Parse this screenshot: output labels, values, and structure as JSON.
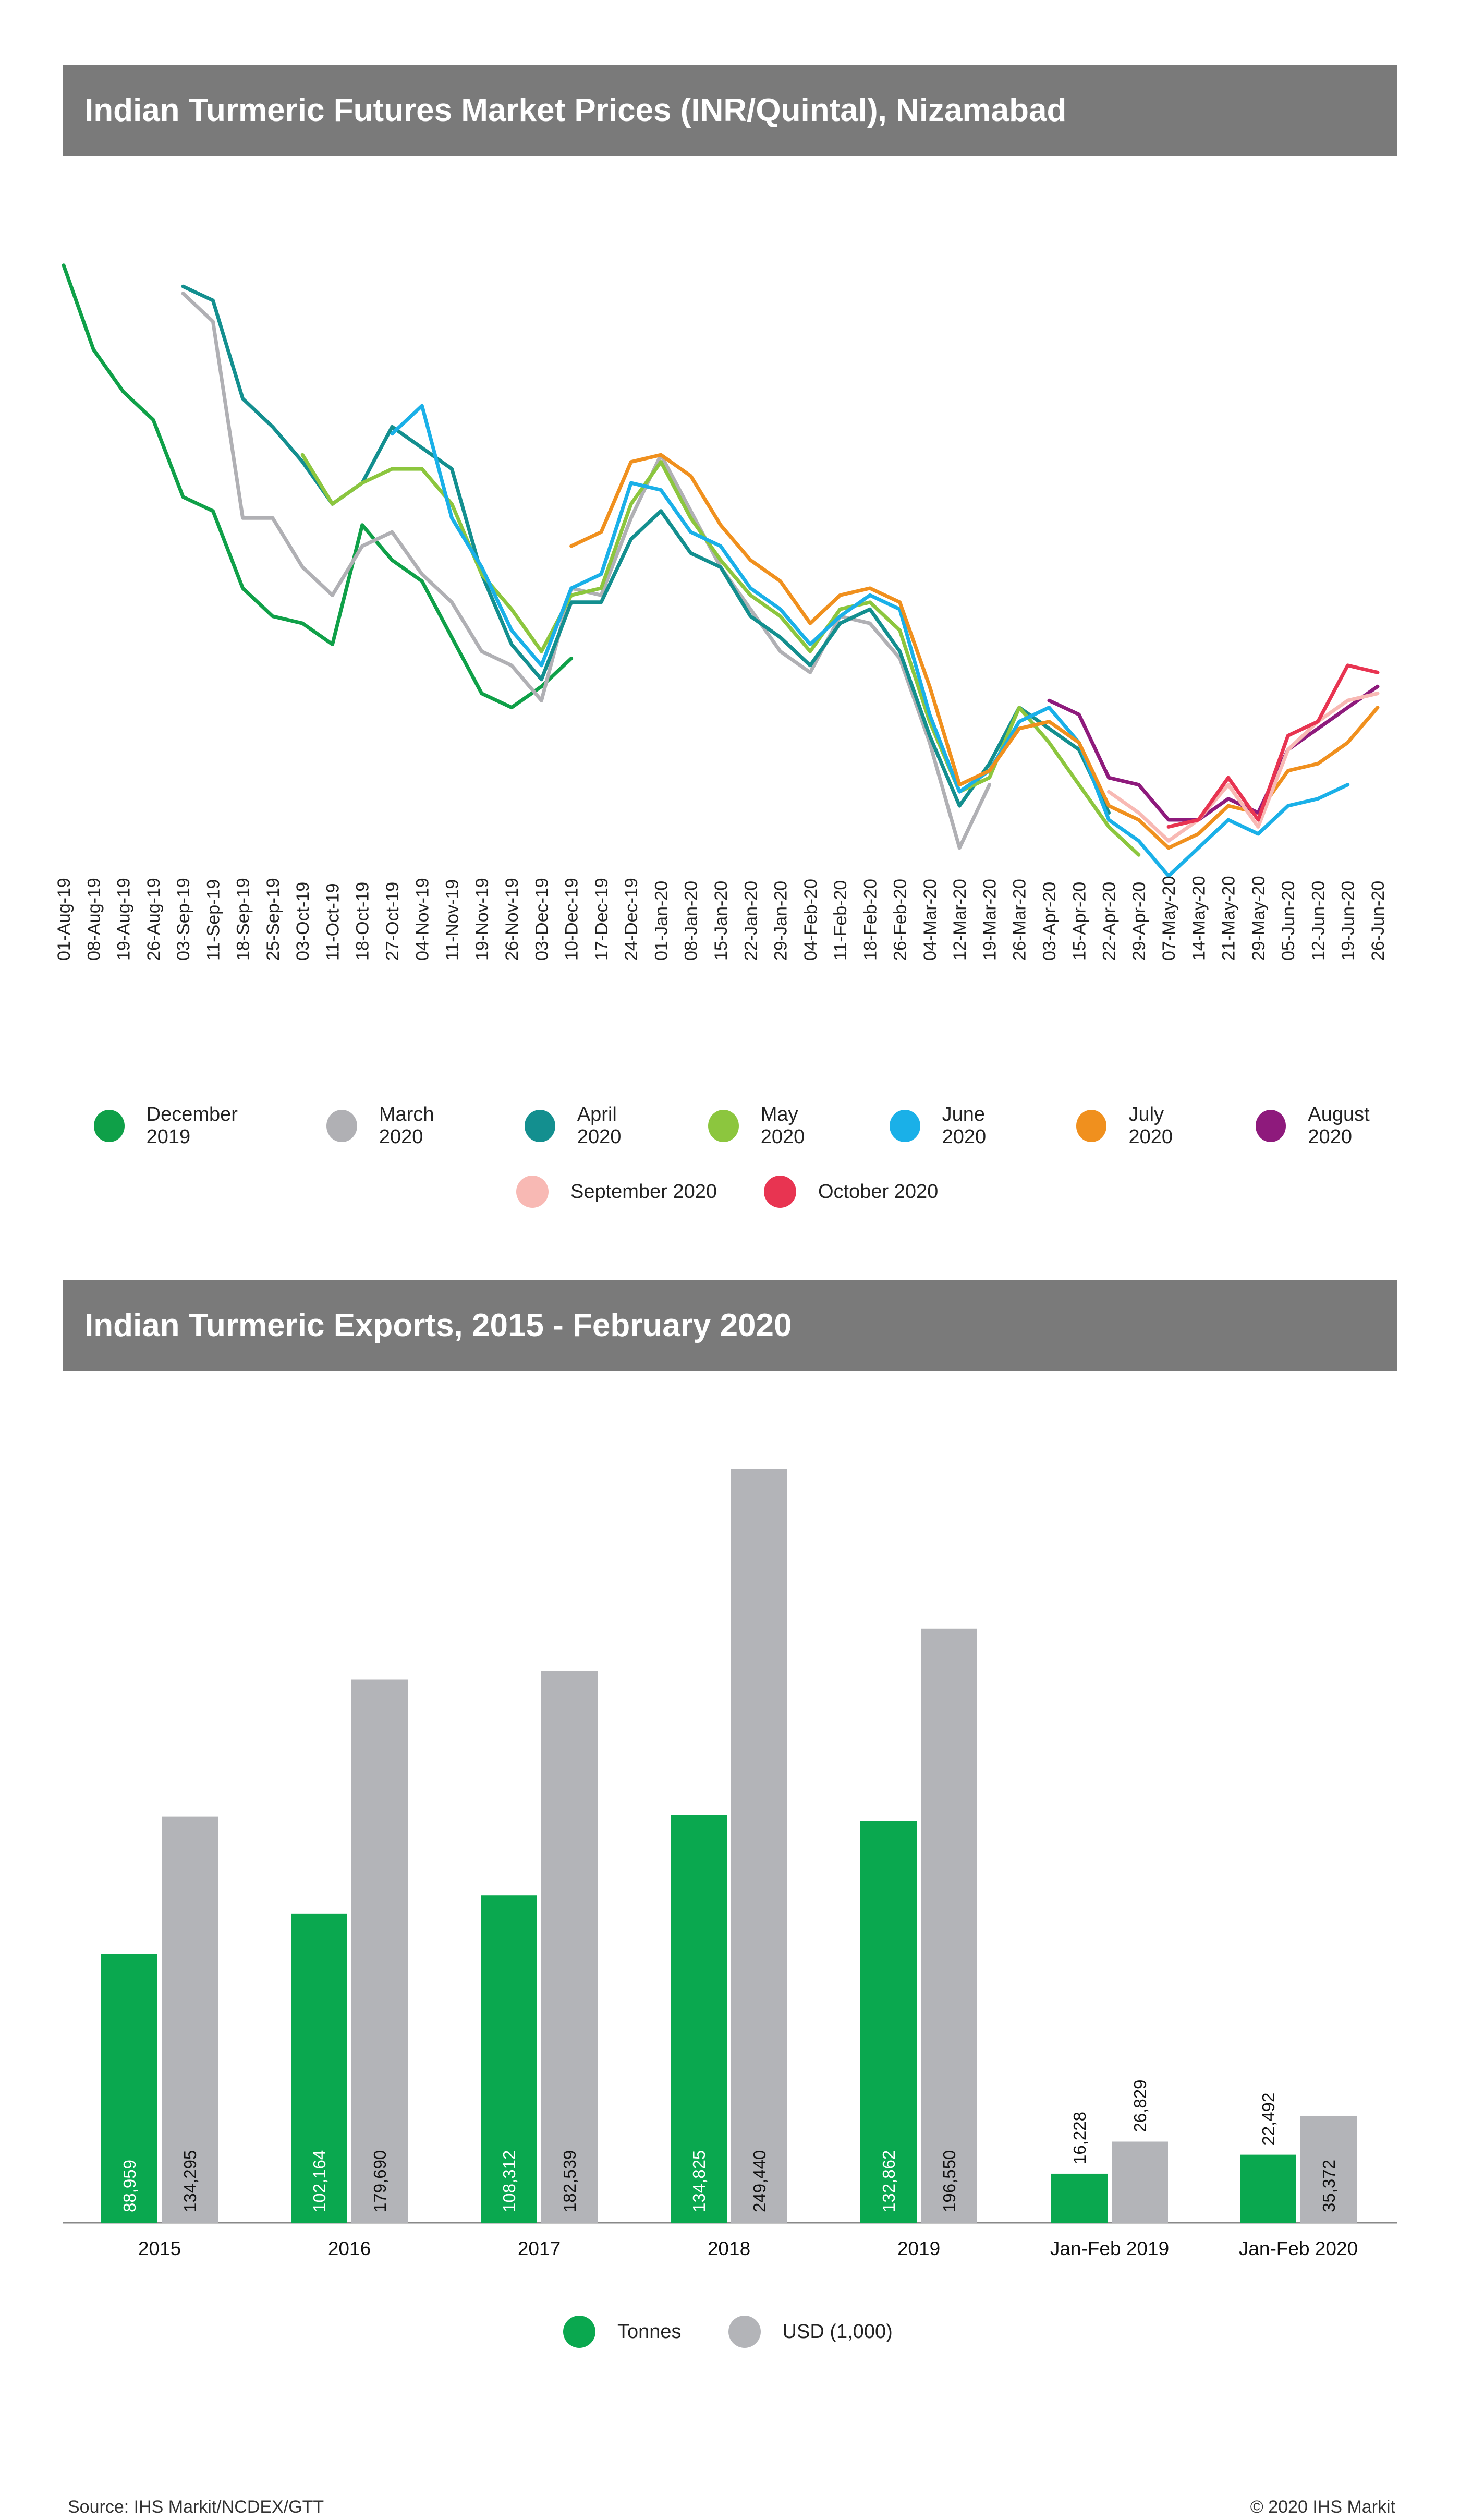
{
  "chart_data": [
    {
      "type": "line",
      "title": "Indian Turmeric Futures Market Prices (INR/Quintal), Nizamabad",
      "x_tick_labels": [
        "01-Aug-19",
        "08-Aug-19",
        "19-Aug-19",
        "26-Aug-19",
        "03-Sep-19",
        "11-Sep-19",
        "18-Sep-19",
        "25-Sep-19",
        "03-Oct-19",
        "11-Oct-19",
        "18-Oct-19",
        "27-Oct-19",
        "04-Nov-19",
        "11-Nov-19",
        "19-Nov-19",
        "26-Nov-19",
        "03-Dec-19",
        "10-Dec-19",
        "17-Dec-19",
        "24-Dec-19",
        "01-Jan-20",
        "08-Jan-20",
        "15-Jan-20",
        "22-Jan-20",
        "29-Jan-20",
        "04-Feb-20",
        "11-Feb-20",
        "18-Feb-20",
        "26-Feb-20",
        "04-Mar-20",
        "12-Mar-20",
        "19-Mar-20",
        "26-Mar-20",
        "03-Apr-20",
        "15-Apr-20",
        "22-Apr-20",
        "29-Apr-20",
        "07-May-20",
        "14-May-20",
        "21-May-20",
        "29-May-20",
        "05-Jun-20",
        "12-Jun-20",
        "19-Jun-20",
        "26-Jun-20"
      ],
      "y_axis_labels_shown": false,
      "gridlines": false,
      "legend_position": "bottom",
      "note": "Y values are relative price levels read from the unlabeled y-axis (no tick labels are printed).",
      "series": [
        {
          "name": "December 2019",
          "color": "#0fa048",
          "x": [
            0,
            1,
            2,
            3,
            4,
            5,
            6,
            7,
            8,
            9,
            10,
            11,
            12,
            13,
            14,
            15,
            16,
            17
          ],
          "values": [
            8100,
            7500,
            7200,
            7000,
            6450,
            6350,
            5800,
            5600,
            5550,
            5400,
            6250,
            6000,
            5850,
            5450,
            5050,
            4950,
            5100,
            5300
          ]
        },
        {
          "name": "March 2020",
          "color": "#b0b0b4",
          "x": [
            4,
            5,
            6,
            7,
            8,
            9,
            10,
            11,
            12,
            13,
            14,
            15,
            16,
            17,
            18,
            19,
            20,
            21,
            22,
            23,
            24,
            25,
            26,
            27,
            28,
            29,
            30,
            31
          ],
          "values": [
            7900,
            7700,
            6300,
            6300,
            5950,
            5750,
            6100,
            6200,
            5900,
            5700,
            5350,
            5250,
            5000,
            5800,
            5750,
            6300,
            6750,
            6350,
            5950,
            5650,
            5350,
            5200,
            5600,
            5550,
            5300,
            4700,
            3950,
            4400
          ]
        },
        {
          "name": "April 2020",
          "color": "#138f8f",
          "x": [
            4,
            5,
            6,
            7,
            8,
            9,
            10,
            11,
            12,
            13,
            14,
            15,
            16,
            17,
            18,
            19,
            20,
            21,
            22,
            23,
            24,
            25,
            26,
            27,
            28,
            29,
            30,
            31,
            32,
            33,
            34,
            35
          ],
          "values": [
            7950,
            7850,
            7150,
            6950,
            6700,
            6400,
            6550,
            6950,
            6800,
            6650,
            5900,
            5400,
            5150,
            5700,
            5700,
            6150,
            6350,
            6050,
            5950,
            5600,
            5450,
            5250,
            5550,
            5650,
            5350,
            4750,
            4250,
            4550,
            4950,
            4800,
            4650,
            4200
          ]
        },
        {
          "name": "May 2020",
          "color": "#8cc63e",
          "x": [
            8,
            9,
            10,
            11,
            12,
            13,
            14,
            15,
            16,
            17,
            18,
            19,
            20,
            21,
            22,
            23,
            24,
            25,
            26,
            27,
            28,
            29,
            30,
            31,
            32,
            33,
            34,
            35,
            36
          ],
          "values": [
            6750,
            6400,
            6550,
            6650,
            6650,
            6400,
            5900,
            5650,
            5350,
            5750,
            5800,
            6400,
            6700,
            6300,
            6000,
            5750,
            5600,
            5350,
            5650,
            5700,
            5500,
            4850,
            4350,
            4450,
            4950,
            4700,
            4400,
            4100,
            3900
          ]
        },
        {
          "name": "June 2020",
          "color": "#1ab0e8",
          "x": [
            11,
            12,
            13,
            14,
            15,
            16,
            17,
            18,
            19,
            20,
            21,
            22,
            23,
            24,
            25,
            26,
            27,
            28,
            29,
            30,
            31,
            32,
            33,
            34,
            35,
            36,
            37,
            38,
            39,
            40,
            41,
            42,
            43
          ],
          "values": [
            6900,
            7100,
            6300,
            5950,
            5500,
            5250,
            5800,
            5900,
            6550,
            6500,
            6200,
            6100,
            5800,
            5650,
            5400,
            5600,
            5750,
            5650,
            4900,
            4350,
            4500,
            4850,
            4950,
            4700,
            4150,
            4000,
            3750,
            3950,
            4150,
            4050,
            4250,
            4300,
            4400
          ]
        },
        {
          "name": "July 2020",
          "color": "#f0901e",
          "x": [
            17,
            18,
            19,
            20,
            21,
            22,
            23,
            24,
            25,
            26,
            27,
            28,
            29,
            30,
            31,
            32,
            33,
            34,
            35,
            36,
            37,
            38,
            39,
            40,
            41,
            42,
            43,
            44
          ],
          "values": [
            6100,
            6200,
            6700,
            6750,
            6600,
            6250,
            6000,
            5850,
            5550,
            5750,
            5800,
            5700,
            5100,
            4400,
            4500,
            4800,
            4850,
            4700,
            4250,
            4150,
            3950,
            4050,
            4250,
            4200,
            4500,
            4550,
            4700,
            4950
          ]
        },
        {
          "name": "August 2020",
          "color": "#8e1a7c",
          "x": [
            33,
            34,
            35,
            36,
            37,
            38,
            39,
            40,
            41,
            42,
            43,
            44
          ],
          "values": [
            5000,
            4900,
            4450,
            4400,
            4150,
            4150,
            4300,
            4200,
            4650,
            4800,
            4950,
            5100
          ]
        },
        {
          "name": "September 2020",
          "color": "#f8b9b4",
          "x": [
            35,
            36,
            37,
            38,
            39,
            40,
            41,
            42,
            43,
            44
          ],
          "values": [
            4350,
            4200,
            4000,
            4150,
            4400,
            4100,
            4650,
            4850,
            5000,
            5050
          ]
        },
        {
          "name": "October 2020",
          "color": "#e83451",
          "x": [
            37,
            38,
            39,
            40,
            41,
            42,
            43,
            44
          ],
          "values": [
            4100,
            4150,
            4450,
            4150,
            4750,
            4850,
            5250,
            5200
          ]
        }
      ]
    },
    {
      "type": "bar",
      "title": "Indian Turmeric Exports, 2015 - February 2020",
      "categories": [
        "2015",
        "2016",
        "2017",
        "2018",
        "2019",
        "Jan-Feb 2019",
        "Jan-Feb 2020"
      ],
      "gridlines": false,
      "legend_position": "bottom",
      "series": [
        {
          "name": "Tonnes",
          "color": "#0aa84f",
          "values": [
            88959,
            102164,
            108312,
            134825,
            132862,
            16228,
            22492
          ],
          "labels": [
            "88,959",
            "102,164",
            "108,312",
            "134,825",
            "132,862",
            "16,228",
            "22,492"
          ]
        },
        {
          "name": "USD (1,000)",
          "color": "#b3b4b8",
          "values": [
            134295,
            179690,
            182539,
            249440,
            196550,
            26829,
            35372
          ],
          "labels": [
            "134,295",
            "179,690",
            "182,539",
            "249,440",
            "196,550",
            "26,829",
            "35,372"
          ]
        }
      ]
    }
  ],
  "footer": {
    "source": "Source: IHS Markit/NCDEX/GTT",
    "copyright": "© 2020 IHS Markit"
  }
}
